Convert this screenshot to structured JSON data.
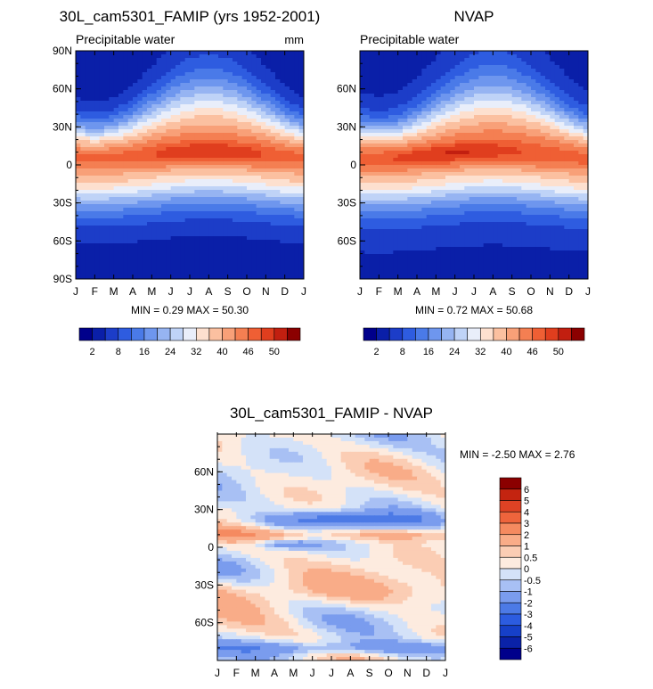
{
  "colors": {
    "abs_scale": [
      "#00008b",
      "#0a1fa8",
      "#1c3dc8",
      "#2e5ce0",
      "#4a7ae8",
      "#6e96ee",
      "#96b4f2",
      "#bfd3f7",
      "#e9eefa",
      "#fde0cf",
      "#fbc0a0",
      "#f8a078",
      "#f47f52",
      "#ef5f34",
      "#e03e1e",
      "#c21f10",
      "#8b0000"
    ],
    "diff_scale": [
      "#00008b",
      "#0a22a8",
      "#1640c8",
      "#2c5ce0",
      "#4c7ae6",
      "#7a9cee",
      "#a8c0f4",
      "#d4e2f8",
      "#fdebdf",
      "#fbcdb4",
      "#f9ac88",
      "#f58a60",
      "#ee643c",
      "#de4224",
      "#c42410",
      "#8b0000"
    ]
  },
  "chart_data": [
    {
      "type": "heatmap",
      "title": "30L_cam5301_FAMIP (yrs 1952-2001)",
      "subtitle_left": "Precipitable water",
      "subtitle_right": "mm",
      "x_ticks": [
        "J",
        "F",
        "M",
        "A",
        "M",
        "J",
        "J",
        "A",
        "S",
        "O",
        "N",
        "D",
        "J"
      ],
      "y_ticks": [
        "90N",
        "60N",
        "30N",
        "0",
        "30S",
        "60S",
        "90S"
      ],
      "ylim": [
        -90,
        90
      ],
      "stats": "MIN =   0.29 MAX =  50.30",
      "min": 0.29,
      "max": 50.3,
      "colorbar_labels": [
        "2",
        "8",
        "16",
        "24",
        "32",
        "40",
        "46",
        "50"
      ],
      "peak": 50.3,
      "peak_lat": 8,
      "peak_month": 7,
      "pole_value": 2
    },
    {
      "type": "heatmap",
      "title": "NVAP",
      "subtitle_left": "Precipitable water",
      "x_ticks": [
        "J",
        "F",
        "M",
        "A",
        "M",
        "J",
        "J",
        "A",
        "S",
        "O",
        "N",
        "D",
        "J"
      ],
      "y_ticks": [
        "60N",
        "30N",
        "0",
        "30S",
        "60S"
      ],
      "ylim": [
        -90,
        90
      ],
      "stats": "MIN =   0.72 MAX =  50.68",
      "min": 0.72,
      "max": 50.68,
      "colorbar_labels": [
        "2",
        "8",
        "16",
        "24",
        "32",
        "40",
        "46",
        "50"
      ],
      "peak": 50.7,
      "peak_lat": 8,
      "peak_month": 5,
      "pole_value": 3
    },
    {
      "type": "heatmap",
      "title": "30L_cam5301_FAMIP - NVAP",
      "x_ticks": [
        "J",
        "F",
        "M",
        "A",
        "M",
        "J",
        "J",
        "A",
        "S",
        "O",
        "N",
        "D",
        "J"
      ],
      "y_ticks": [
        "60N",
        "30N",
        "0",
        "30S",
        "60S"
      ],
      "ylim": [
        -90,
        90
      ],
      "stats": "MIN =  -2.50 MAX =   2.76",
      "min": -2.5,
      "max": 2.76,
      "colorbar_labels": [
        "6",
        "5",
        "4",
        "3",
        "2",
        "1",
        "0.5",
        "0",
        "-0.5",
        "-1",
        "-2",
        "-3",
        "-4",
        "-5",
        "-6"
      ]
    }
  ]
}
